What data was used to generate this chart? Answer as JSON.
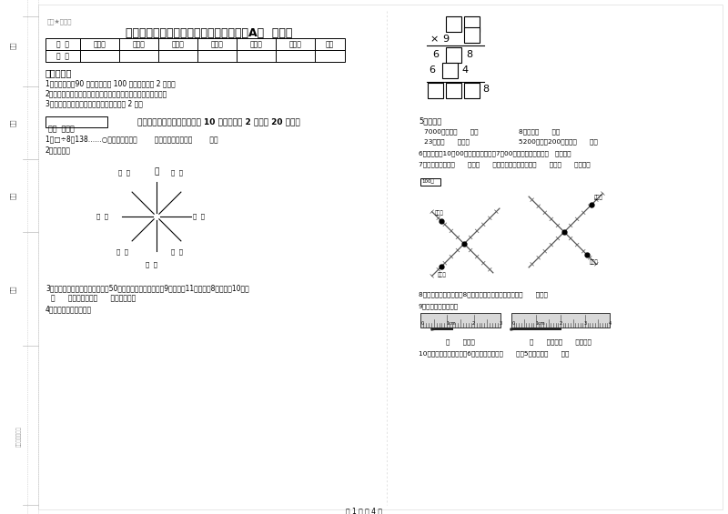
{
  "title": "赣南版三年级数学【下册】开学考试试卷A卷  含答案",
  "watermark": "微密★自用菌",
  "table_headers": [
    "题  号",
    "填空题",
    "选择题",
    "判断题",
    "计算题",
    "综合题",
    "应用题",
    "总分"
  ],
  "instructions_title": "考试须知：",
  "instructions": [
    "1．考试时间：90 分钟。满分为 100 分（含卷面分 2 分）。",
    "2．请首先按要求在试卷的指定位置填写您的姓名、班级、学号。",
    "3．不要在试卷上乱写乱画，卷面不整洁扣 2 分。"
  ],
  "score_label": "得分  评卷人",
  "section1_title": "一、用心思考，正确填空（共 10 小题，每题 2 分，共 20 分）。",
  "q1": "1．□÷8＝138……○，余数最大填（        ），这时被除数是（        ）。",
  "q2": "2．填一填。",
  "north_label": "北",
  "q3a": "3．体育老师对第一小组同学进行50米跑测试，成绩如下小红9秒，小强11秒，小明8秒，小军10秒。",
  "q3b": "（      ）跑得最快，（      ）跑得最慢。",
  "q4": "4．在里填上适当的数。",
  "q5_title": "5．换算。",
  "q5_line1a": "7000千克＝（      ）吨",
  "q5_line1b": "8千克＝（      ）克",
  "q5_line2a": "23吨＝（      ）千克",
  "q5_line2b": "5200千克－200千克＝（      ）吨",
  "q6": "6．小林晚上10：00睡觉，第二天早上7：00起床，他一共睡了（   ）小时。",
  "q7": "7．小红家在学校（      ）方（      ）米处，小明家在学校（      ）方（      ）米处。",
  "q8": "8．小明从一楼到三楼用8秒，照这样他从一楼到五楼用（      ）秒。",
  "q9": "9．量出钉子的长度。",
  "q9_measure1": "（      ）毫米",
  "q9_measure2": "（      ）厘米（      ）毫米。",
  "q10": "10．把一根绳子平均分成6份，每份是它的（      ），5份是它的（      ）。",
  "page_footer": "第 1 页 共 4 页",
  "left_labels_top": [
    "学号",
    "姓名",
    "班级"
  ],
  "left_label_school": "学校",
  "left_label_binding": "装订线（勿填）",
  "map_scale": "100米",
  "map_school": "学校",
  "map_xiaohong": "小红家",
  "map_xiaoming": "小明家",
  "map_xiaoqiang": "小强家",
  "map_xiaojun": "小军家",
  "bg_color": "#ffffff"
}
